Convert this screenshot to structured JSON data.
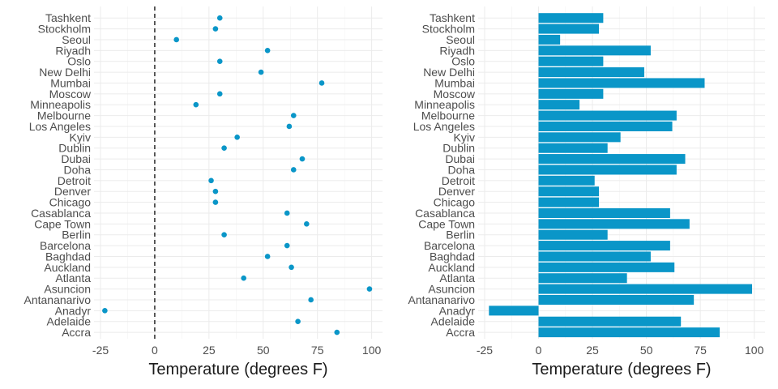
{
  "chart_data": [
    {
      "type": "scatter",
      "xlabel": "Temperature (degrees F)",
      "xlim": [
        -28,
        105
      ],
      "xticks": [
        -25,
        0,
        25,
        50,
        75,
        100
      ],
      "xtick_labels": [
        "-25",
        "0",
        "25",
        "50",
        "75",
        "100"
      ],
      "reference_line": {
        "x": 0,
        "style": "dashed"
      },
      "grid": true,
      "categories": [
        "Tashkent",
        "Stockholm",
        "Seoul",
        "Riyadh",
        "Oslo",
        "New Delhi",
        "Mumbai",
        "Moscow",
        "Minneapolis",
        "Melbourne",
        "Los Angeles",
        "Kyiv",
        "Dublin",
        "Dubai",
        "Doha",
        "Detroit",
        "Denver",
        "Chicago",
        "Casablanca",
        "Cape Town",
        "Berlin",
        "Barcelona",
        "Baghdad",
        "Auckland",
        "Atlanta",
        "Asuncion",
        "Antananarivo",
        "Anadyr",
        "Adelaide",
        "Accra"
      ],
      "values": [
        30,
        28,
        10,
        52,
        30,
        49,
        77,
        30,
        19,
        64,
        62,
        38,
        32,
        68,
        64,
        26,
        28,
        28,
        61,
        70,
        32,
        61,
        52,
        63,
        41,
        99,
        72,
        -23,
        66,
        84
      ],
      "color": "#0a96c8"
    },
    {
      "type": "bar",
      "orientation": "horizontal",
      "xlabel": "Temperature (degrees F)",
      "xlim": [
        -28,
        105
      ],
      "xticks": [
        -25,
        0,
        25,
        50,
        75,
        100
      ],
      "xtick_labels": [
        "-25",
        "0",
        "25",
        "50",
        "75",
        "100"
      ],
      "grid": true,
      "categories": [
        "Tashkent",
        "Stockholm",
        "Seoul",
        "Riyadh",
        "Oslo",
        "New Delhi",
        "Mumbai",
        "Moscow",
        "Minneapolis",
        "Melbourne",
        "Los Angeles",
        "Kyiv",
        "Dublin",
        "Dubai",
        "Doha",
        "Detroit",
        "Denver",
        "Chicago",
        "Casablanca",
        "Cape Town",
        "Berlin",
        "Barcelona",
        "Baghdad",
        "Auckland",
        "Atlanta",
        "Asuncion",
        "Antananarivo",
        "Anadyr",
        "Adelaide",
        "Accra"
      ],
      "values": [
        30,
        28,
        10,
        52,
        30,
        49,
        77,
        30,
        19,
        64,
        62,
        38,
        32,
        68,
        64,
        26,
        28,
        28,
        61,
        70,
        32,
        61,
        52,
        63,
        41,
        99,
        72,
        -23,
        66,
        84
      ],
      "color": "#0a96c8"
    }
  ]
}
